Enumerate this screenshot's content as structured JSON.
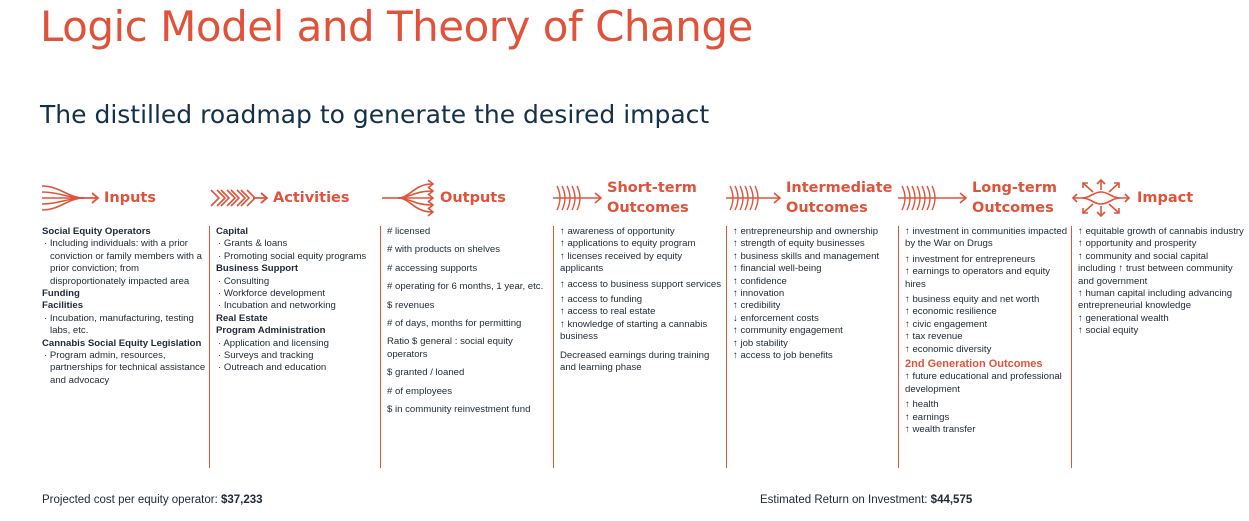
{
  "title": "Logic Model and Theory of Change",
  "subtitle": "The distilled roadmap to generate the desired impact",
  "brand_color": "#E0533A",
  "text_color": "#1f2937",
  "columns": [
    {
      "icon": "converging-arrows-icon",
      "title_lines": [
        "Inputs"
      ],
      "items": [
        {
          "style": "b",
          "text": "Social Equity Operators"
        },
        {
          "style": "bullet",
          "text": "· Including individuals: with a prior conviction or family members with a prior conviction; from disproportionately impacted area"
        },
        {
          "style": "b",
          "text": "Funding"
        },
        {
          "style": "b",
          "text": "Facilities"
        },
        {
          "style": "bullet",
          "text": "· Incubation, manufacturing, testing labs, etc."
        },
        {
          "style": "b",
          "text": "Cannabis Social Equity Legislation"
        },
        {
          "style": "bullet",
          "text": "· Program admin, resources, partnerships for technical assistance and advocacy"
        }
      ]
    },
    {
      "icon": "chevron-chain-icon",
      "title_lines": [
        "Activities"
      ],
      "items": [
        {
          "style": "b",
          "text": "Capital"
        },
        {
          "style": "bullet",
          "text": "· Grants & loans"
        },
        {
          "style": "bullet",
          "text": "· Promoting social equity programs"
        },
        {
          "style": "b",
          "text": "Business Support"
        },
        {
          "style": "bullet",
          "text": "· Consulting"
        },
        {
          "style": "bullet",
          "text": "· Workforce development"
        },
        {
          "style": "bullet",
          "text": "· Incubation and networking"
        },
        {
          "style": "b",
          "text": "Real Estate"
        },
        {
          "style": "b",
          "text": "Program Administration"
        },
        {
          "style": "bullet",
          "text": "· Application and licensing"
        },
        {
          "style": "bullet",
          "text": "· Surveys and tracking"
        },
        {
          "style": "bullet",
          "text": "· Outreach and education"
        }
      ]
    },
    {
      "icon": "diverging-arrows-icon",
      "title_lines": [
        "Outputs"
      ],
      "items": [
        {
          "style": "gm",
          "text": "# licensed"
        },
        {
          "style": "gm",
          "text": "# with products on shelves"
        },
        {
          "style": "gm",
          "text": "# accessing supports"
        },
        {
          "style": "gm",
          "text": "# operating for 6 months, 1 year, etc."
        },
        {
          "style": "gm",
          "text": "$ revenues"
        },
        {
          "style": "gm",
          "text": "# of days, months for permitting"
        },
        {
          "style": "gm",
          "text": "Ratio $ general : social equity operators"
        },
        {
          "style": "gm",
          "text": "$ granted / loaned"
        },
        {
          "style": "gm",
          "text": "# of employees"
        },
        {
          "style": "gm",
          "text": "$ in community reinvestment fund"
        }
      ]
    },
    {
      "icon": "chevron-arrow-icon",
      "title_lines": [
        "Short-term",
        "Outcomes"
      ],
      "items": [
        {
          "style": "",
          "text": "↑ awareness of opportunity"
        },
        {
          "style": "",
          "text": "↑ applications to equity program"
        },
        {
          "style": "gs",
          "text": "↑ licenses received by equity applicants"
        },
        {
          "style": "gs",
          "text": "↑ access to business support services"
        },
        {
          "style": "",
          "text": "↑ access to funding"
        },
        {
          "style": "",
          "text": "↑ access to real estate"
        },
        {
          "style": "gm",
          "text": "↑ knowledge of starting a cannabis business"
        },
        {
          "style": "",
          "text": "Decreased earnings during training and learning phase"
        }
      ]
    },
    {
      "icon": "chevron-arrow-icon",
      "title_lines": [
        "Intermediate",
        "Outcomes"
      ],
      "items": [
        {
          "style": "",
          "text": "↑ entrepreneurship and ownership"
        },
        {
          "style": "",
          "text": "↑ strength of equity businesses"
        },
        {
          "style": "",
          "text": "↑ business skills and management"
        },
        {
          "style": "",
          "text": "↑ financial well-being"
        },
        {
          "style": "",
          "text": "↑ confidence"
        },
        {
          "style": "",
          "text": "↑ innovation"
        },
        {
          "style": "",
          "text": "↑ credibility"
        },
        {
          "style": "",
          "text": "↓ enforcement costs"
        },
        {
          "style": "",
          "text": "↑ community engagement"
        },
        {
          "style": "",
          "text": "↑ job stability"
        },
        {
          "style": "",
          "text": "↑ access to job benefits"
        }
      ]
    },
    {
      "icon": "chevron-arrow-icon",
      "title_lines": [
        "Long-term",
        "Outcomes"
      ],
      "items": [
        {
          "style": "gs",
          "text": "↑ investment in communities impacted by the War on Drugs"
        },
        {
          "style": "",
          "text": "↑ investment for entrepreneurs"
        },
        {
          "style": "gs",
          "text": "↑ earnings to operators and equity hires"
        },
        {
          "style": "",
          "text": "↑ business equity and net worth"
        },
        {
          "style": "",
          "text": "↑ economic resilience"
        },
        {
          "style": "",
          "text": "↑ civic engagement"
        },
        {
          "style": "",
          "text": "↑ tax revenue"
        },
        {
          "style": "",
          "text": "↑ economic diversity"
        },
        {
          "style": "hl",
          "text": "2nd Generation Outcomes"
        },
        {
          "style": "gs",
          "text": "↑ future educational and professional development"
        },
        {
          "style": "",
          "text": "↑ health"
        },
        {
          "style": "",
          "text": "↑ earnings"
        },
        {
          "style": "",
          "text": "↑ wealth transfer"
        }
      ]
    },
    {
      "icon": "burst-arrows-icon",
      "title_lines": [
        "Impact"
      ],
      "items": [
        {
          "style": "",
          "text": "↑ equitable growth of cannabis industry"
        },
        {
          "style": "",
          "text": "↑ opportunity and prosperity"
        },
        {
          "style": "",
          "text": "↑ community and social capital including ↑ trust between community and government"
        },
        {
          "style": "",
          "text": "↑ human capital including advancing entrepreneurial knowledge"
        },
        {
          "style": "",
          "text": "↑ generational wealth"
        },
        {
          "style": "",
          "text": "↑ social equity"
        }
      ]
    }
  ],
  "footer": {
    "cost_label": "Projected cost per equity operator: ",
    "cost_value": "$37,233",
    "roi_label": "Estimated Return on Investment: ",
    "roi_value": "$44,575"
  }
}
